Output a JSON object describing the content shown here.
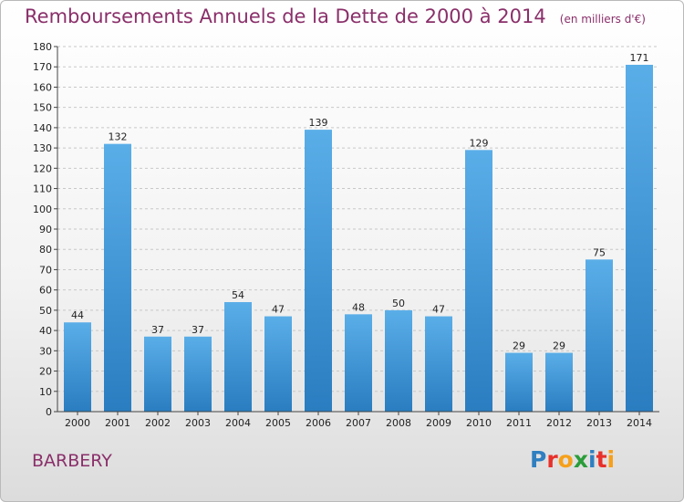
{
  "title": "Remboursements Annuels de la Dette de 2000 à 2014",
  "subtitle": "(en milliers d'€)",
  "commune": "BARBERY",
  "logo": {
    "text": "Proxiti",
    "letters": [
      {
        "ch": "P",
        "color": "#2f7fc1"
      },
      {
        "ch": "r",
        "color": "#e8302a"
      },
      {
        "ch": "o",
        "color": "#f6a01a"
      },
      {
        "ch": "x",
        "color": "#2a9d3a"
      },
      {
        "ch": "i",
        "color": "#2f7fc1"
      },
      {
        "ch": "t",
        "color": "#e8302a"
      },
      {
        "ch": "i",
        "color": "#f6a01a"
      }
    ]
  },
  "colors": {
    "title": "#8a2f6a",
    "bar_top": "#5aaee8",
    "bar_bottom": "#2a7dc0",
    "grid": "#c8c8c8"
  },
  "chart_data": {
    "type": "bar",
    "categories": [
      "2000",
      "2001",
      "2002",
      "2003",
      "2004",
      "2005",
      "2006",
      "2007",
      "2008",
      "2009",
      "2010",
      "2011",
      "2012",
      "2013",
      "2014"
    ],
    "values": [
      44,
      132,
      37,
      37,
      54,
      47,
      139,
      48,
      50,
      47,
      129,
      29,
      29,
      75,
      171
    ],
    "ylim": [
      0,
      180
    ],
    "yticks": [
      0,
      10,
      20,
      30,
      40,
      50,
      60,
      70,
      80,
      90,
      100,
      110,
      120,
      130,
      140,
      150,
      160,
      170,
      180
    ],
    "grid": true,
    "xlabel": "",
    "ylabel": ""
  }
}
